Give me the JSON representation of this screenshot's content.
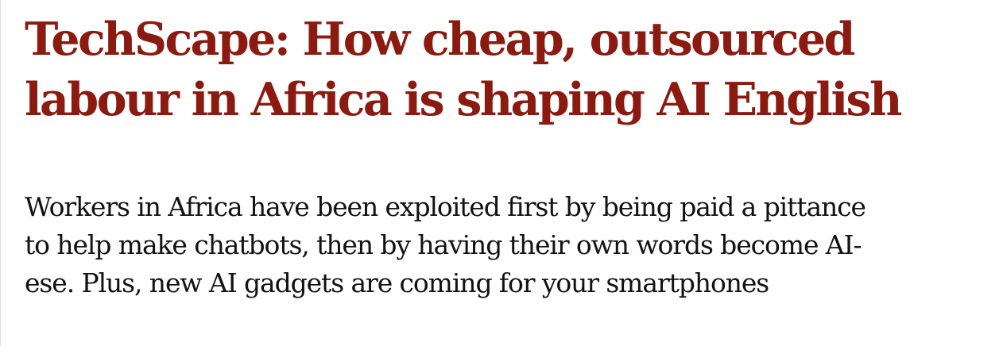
{
  "article": {
    "headline": "TechScape: How cheap, outsourced labour in Africa is shaping AI English",
    "standfirst": "Workers in Africa have been exploited first by being paid a pittance to help make chatbots, then by having their own words become AI-ese. Plus, new AI gadgets are coming for your smartphones"
  },
  "colors": {
    "headline": "#8b1a10",
    "body_text": "#121212",
    "background": "#ffffff",
    "left_rule": "#dcdcdc"
  }
}
